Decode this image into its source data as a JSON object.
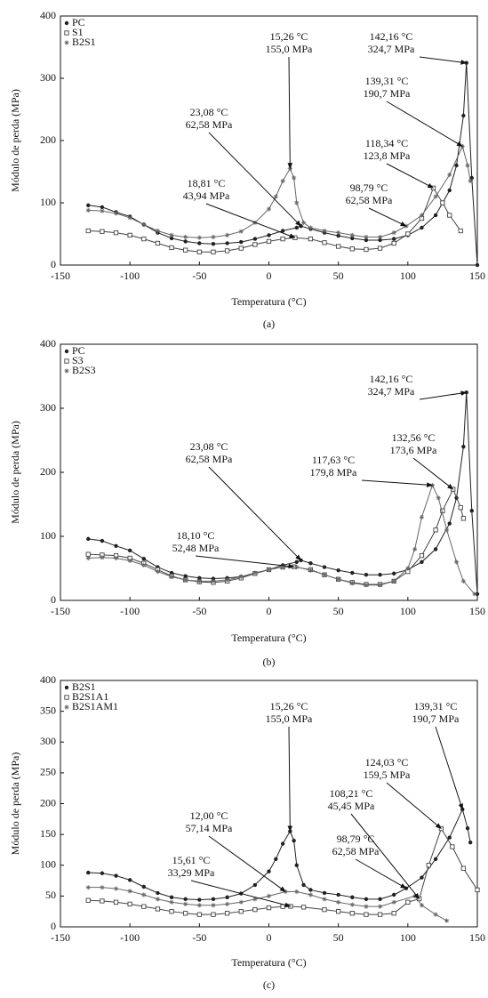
{
  "chart_data": [
    {
      "type": "line",
      "xlabel": "Temperatura (°C)",
      "ylabel": "Módulo de perda (MPa)",
      "caption": "(a)",
      "xlim": [
        -150,
        150
      ],
      "ylim": [
        0,
        400
      ],
      "xticks": [
        -150,
        -100,
        -50,
        0,
        50,
        100,
        150
      ],
      "yticks": [
        0,
        100,
        200,
        300,
        400
      ],
      "legend": "upper left",
      "series": [
        {
          "name": "PC",
          "color": "#222222",
          "marker": "circle",
          "x": [
            -130,
            -120,
            -110,
            -100,
            -90,
            -80,
            -70,
            -60,
            -50,
            -40,
            -30,
            -20,
            -10,
            0,
            10,
            20,
            23.08,
            30,
            40,
            50,
            60,
            70,
            80,
            90,
            100,
            110,
            120,
            130,
            135,
            140,
            142.16,
            146,
            150
          ],
          "values": [
            96,
            93,
            85,
            78,
            65,
            52,
            43,
            38,
            35,
            34,
            35,
            37,
            42,
            48,
            55,
            60,
            62.58,
            58,
            52,
            47,
            43,
            40,
            40,
            42,
            48,
            60,
            80,
            120,
            160,
            240,
            324.7,
            140,
            0
          ]
        },
        {
          "name": "S1",
          "color": "#444444",
          "marker": "square",
          "x": [
            -130,
            -120,
            -110,
            -100,
            -90,
            -80,
            -70,
            -60,
            -50,
            -40,
            -30,
            -20,
            -10,
            0,
            10,
            18.81,
            30,
            40,
            50,
            60,
            70,
            80,
            90,
            100,
            110,
            118.34,
            125,
            130,
            138
          ],
          "values": [
            55,
            54,
            52,
            48,
            42,
            35,
            28,
            24,
            21,
            21,
            23,
            27,
            33,
            38,
            42,
            43.94,
            42,
            36,
            30,
            26,
            25,
            27,
            35,
            50,
            75,
            123.8,
            100,
            80,
            55
          ]
        },
        {
          "name": "B2S1",
          "color": "#666666",
          "marker": "star",
          "x": [
            -130,
            -120,
            -110,
            -100,
            -90,
            -80,
            -70,
            -60,
            -50,
            -40,
            -30,
            -20,
            -10,
            0,
            5,
            10,
            15.26,
            18,
            20,
            25,
            30,
            40,
            50,
            60,
            70,
            80,
            90,
            98.79,
            110,
            120,
            130,
            139.31,
            143,
            145
          ],
          "values": [
            88,
            87,
            83,
            76,
            65,
            55,
            48,
            45,
            44,
            45,
            48,
            54,
            68,
            90,
            110,
            135,
            155.0,
            140,
            100,
            68,
            60,
            55,
            52,
            48,
            45,
            45,
            52,
            62.58,
            80,
            110,
            145,
            190.7,
            160,
            135
          ]
        }
      ],
      "annotations": [
        {
          "x": 15.26,
          "x_label": "15,26 °C",
          "y": 155.0,
          "y_label": "155,0 MPa"
        },
        {
          "x": 142.16,
          "x_label": "142,16 °C",
          "y": 324.7,
          "y_label": "324,7 MPa"
        },
        {
          "x": 139.31,
          "x_label": "139,31 °C",
          "y": 190.7,
          "y_label": "190,7 MPa"
        },
        {
          "x": 23.08,
          "x_label": "23,08 °C",
          "y": 62.58,
          "y_label": "62,58 MPa"
        },
        {
          "x": 118.34,
          "x_label": "118,34 °C",
          "y": 123.8,
          "y_label": "123,8 MPa"
        },
        {
          "x": 18.81,
          "x_label": "18,81 °C",
          "y": 43.94,
          "y_label": "43,94 MPa"
        },
        {
          "x": 98.79,
          "x_label": "98,79 °C",
          "y": 62.58,
          "y_label": "62,58 MPa"
        }
      ]
    },
    {
      "type": "line",
      "xlabel": "Temperatura (°C)",
      "ylabel": "Módulo de perda (MPa)",
      "caption": "(b)",
      "xlim": [
        -150,
        150
      ],
      "ylim": [
        0,
        400
      ],
      "xticks": [
        -150,
        -100,
        -50,
        0,
        50,
        100,
        150
      ],
      "yticks": [
        0,
        100,
        200,
        300,
        400
      ],
      "legend": "upper left",
      "series": [
        {
          "name": "PC",
          "color": "#222222",
          "marker": "circle",
          "x": [
            -130,
            -120,
            -110,
            -100,
            -90,
            -80,
            -70,
            -60,
            -50,
            -40,
            -30,
            -20,
            -10,
            0,
            10,
            20,
            23.08,
            30,
            40,
            50,
            60,
            70,
            80,
            90,
            100,
            110,
            120,
            130,
            135,
            140,
            142.16,
            146,
            150
          ],
          "values": [
            96,
            93,
            85,
            78,
            65,
            52,
            43,
            38,
            35,
            34,
            35,
            37,
            42,
            48,
            55,
            60,
            62.58,
            58,
            52,
            47,
            43,
            40,
            40,
            42,
            48,
            60,
            80,
            120,
            160,
            240,
            324.7,
            140,
            10
          ]
        },
        {
          "name": "S3",
          "color": "#444444",
          "marker": "square",
          "x": [
            -130,
            -120,
            -110,
            -100,
            -90,
            -80,
            -70,
            -60,
            -50,
            -40,
            -30,
            -20,
            -10,
            0,
            10,
            18.1,
            30,
            40,
            50,
            60,
            70,
            80,
            90,
            100,
            110,
            120,
            125,
            132.56,
            138,
            140
          ],
          "values": [
            72,
            71,
            70,
            66,
            58,
            48,
            38,
            32,
            29,
            28,
            30,
            35,
            42,
            48,
            52,
            52.48,
            48,
            40,
            33,
            28,
            25,
            25,
            30,
            45,
            70,
            110,
            140,
            173.6,
            145,
            128
          ]
        },
        {
          "name": "B2S3",
          "color": "#666666",
          "marker": "star",
          "x": [
            -130,
            -120,
            -110,
            -100,
            -90,
            -80,
            -70,
            -60,
            -50,
            -40,
            -30,
            -20,
            -10,
            0,
            10,
            20,
            30,
            40,
            50,
            60,
            70,
            80,
            90,
            100,
            105,
            110,
            117.63,
            122,
            128,
            135,
            140,
            148
          ],
          "values": [
            66,
            67,
            66,
            62,
            55,
            45,
            37,
            32,
            30,
            30,
            32,
            37,
            43,
            48,
            52,
            52,
            47,
            40,
            33,
            27,
            24,
            24,
            30,
            50,
            80,
            130,
            179.8,
            160,
            110,
            60,
            30,
            10
          ]
        }
      ],
      "annotations": [
        {
          "x": 142.16,
          "x_label": "142,16 °C",
          "y": 324.7,
          "y_label": "324,7 MPa"
        },
        {
          "x": 23.08,
          "x_label": "23,08 °C",
          "y": 62.58,
          "y_label": "62,58 MPa"
        },
        {
          "x": 132.56,
          "x_label": "132,56 °C",
          "y": 173.6,
          "y_label": "173,6 MPa"
        },
        {
          "x": 117.63,
          "x_label": "117,63 °C",
          "y": 179.8,
          "y_label": "179,8 MPa"
        },
        {
          "x": 18.1,
          "x_label": "18,10 °C",
          "y": 52.48,
          "y_label": "52,48 MPa"
        }
      ]
    },
    {
      "type": "line",
      "xlabel": "Temperatura (°C)",
      "ylabel": "Módulo de perda (MPa)",
      "caption": "(c)",
      "xlim": [
        -150,
        150
      ],
      "ylim": [
        0,
        400
      ],
      "xticks": [
        -150,
        -100,
        -50,
        0,
        50,
        100,
        150
      ],
      "yticks": [
        0,
        50,
        100,
        150,
        200,
        250,
        300,
        350,
        400
      ],
      "legend": "upper left",
      "series": [
        {
          "name": "B2S1",
          "color": "#222222",
          "marker": "circle",
          "x": [
            -130,
            -120,
            -110,
            -100,
            -90,
            -80,
            -70,
            -60,
            -50,
            -40,
            -30,
            -20,
            -10,
            0,
            5,
            10,
            15.26,
            18,
            20,
            25,
            30,
            40,
            50,
            60,
            70,
            80,
            90,
            98.79,
            110,
            120,
            130,
            139.31,
            143,
            145
          ],
          "values": [
            88,
            87,
            83,
            76,
            65,
            55,
            48,
            45,
            44,
            45,
            48,
            54,
            68,
            90,
            110,
            135,
            155.0,
            140,
            100,
            68,
            60,
            55,
            52,
            48,
            45,
            45,
            52,
            62.58,
            80,
            110,
            145,
            190.7,
            160,
            137
          ]
        },
        {
          "name": "B2S1A1",
          "color": "#444444",
          "marker": "square",
          "x": [
            -130,
            -120,
            -110,
            -100,
            -90,
            -80,
            -70,
            -60,
            -50,
            -40,
            -30,
            -20,
            -10,
            0,
            10,
            15.61,
            25,
            40,
            50,
            60,
            70,
            80,
            90,
            100,
            108.21,
            115,
            124.03,
            132,
            140,
            150
          ],
          "values": [
            43,
            42,
            40,
            37,
            33,
            29,
            25,
            22,
            20,
            20,
            22,
            25,
            28,
            31,
            33,
            33.29,
            32,
            28,
            25,
            22,
            20,
            20,
            22,
            40,
            45.45,
            100,
            159.5,
            130,
            95,
            60
          ]
        },
        {
          "name": "B2S1AM1",
          "color": "#666666",
          "marker": "star",
          "x": [
            -130,
            -120,
            -110,
            -100,
            -90,
            -80,
            -70,
            -60,
            -50,
            -40,
            -30,
            -20,
            -10,
            0,
            12.0,
            20,
            30,
            40,
            50,
            60,
            70,
            80,
            90,
            105,
            110,
            120,
            128
          ],
          "values": [
            64,
            64,
            62,
            58,
            52,
            45,
            40,
            37,
            35,
            35,
            37,
            40,
            45,
            50,
            57.14,
            57,
            52,
            45,
            40,
            36,
            33,
            33,
            40,
            50,
            35,
            20,
            10
          ]
        }
      ],
      "annotations": [
        {
          "x": 15.26,
          "x_label": "15,26 °C",
          "y": 155.0,
          "y_label": "155,0 MPa"
        },
        {
          "x": 139.31,
          "x_label": "139,31 °C",
          "y": 190.7,
          "y_label": "190,7 MPa"
        },
        {
          "x": 124.03,
          "x_label": "124,03 °C",
          "y": 159.5,
          "y_label": "159,5 MPa"
        },
        {
          "x": 108.21,
          "x_label": "108,21 °C",
          "y": 45.45,
          "y_label": "45,45 MPa"
        },
        {
          "x": 12.0,
          "x_label": "12,00 °C",
          "y": 57.14,
          "y_label": "57,14 MPa"
        },
        {
          "x": 98.79,
          "x_label": "98,79 °C",
          "y": 62.58,
          "y_label": "62,58 MPa"
        },
        {
          "x": 15.61,
          "x_label": "15,61 °C",
          "y": 33.29,
          "y_label": "33,29 MPa"
        }
      ]
    }
  ]
}
